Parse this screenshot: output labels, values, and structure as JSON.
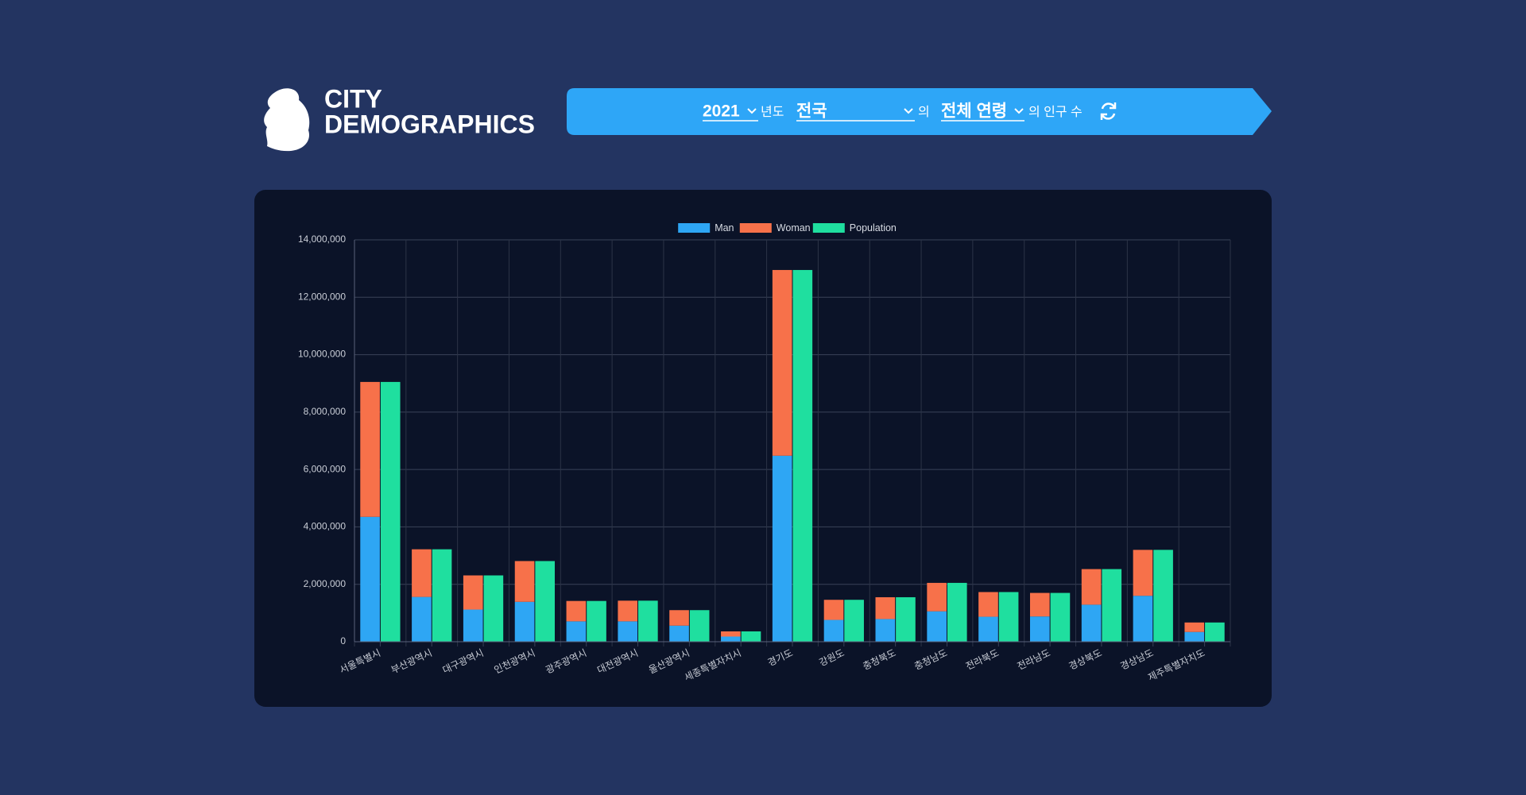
{
  "header": {
    "logo_line1": "CITY",
    "logo_line2": "DEMOGRAPHICS",
    "filter": {
      "year": "2021",
      "year_suffix": "년도",
      "region": "전국",
      "region_suffix": "의",
      "age": "전체 연령",
      "age_suffix": "의 인구 수"
    }
  },
  "chart_data": {
    "type": "bar",
    "stacked": true,
    "categories": [
      "서울특별시",
      "부산광역시",
      "대구광역시",
      "인천광역시",
      "광주광역시",
      "대전광역시",
      "울산광역시",
      "세종특별자치시",
      "경기도",
      "강원도",
      "충청북도",
      "충청남도",
      "전라북도",
      "전라남도",
      "경상북도",
      "경상남도",
      "제주특별자치도"
    ],
    "series": [
      {
        "name": "Man",
        "color": "#2ea6f4",
        "stack": 0,
        "values": [
          4350000,
          1560000,
          1120000,
          1390000,
          710000,
          710000,
          560000,
          180000,
          6480000,
          760000,
          790000,
          1060000,
          870000,
          880000,
          1290000,
          1600000,
          340000
        ]
      },
      {
        "name": "Woman",
        "color": "#f7714a",
        "stack": 0,
        "values": [
          4700000,
          1660000,
          1190000,
          1420000,
          710000,
          720000,
          540000,
          180000,
          6470000,
          700000,
          760000,
          990000,
          860000,
          820000,
          1240000,
          1600000,
          330000
        ]
      },
      {
        "name": "Population",
        "color": "#1fdf9f",
        "stack": 1,
        "values": [
          9050000,
          3220000,
          2310000,
          2810000,
          1420000,
          1430000,
          1100000,
          360000,
          12950000,
          1460000,
          1550000,
          2050000,
          1730000,
          1700000,
          2530000,
          3200000,
          670000
        ]
      }
    ],
    "ylim": [
      0,
      14000000
    ],
    "yticks": [
      0,
      {
        "value": 2000000,
        "label": "2,000,000"
      },
      {
        "value": 4000000,
        "label": "4,000,000"
      },
      {
        "value": 6000000,
        "label": "6,000,000"
      },
      {
        "value": 8000000,
        "label": "8,000,000"
      },
      {
        "value": 10000000,
        "label": "10,000,000"
      },
      {
        "value": 12000000,
        "label": "12,000,000"
      },
      {
        "value": 14000000,
        "label": "14,000,000"
      }
    ],
    "grid": true,
    "legend": "top"
  }
}
